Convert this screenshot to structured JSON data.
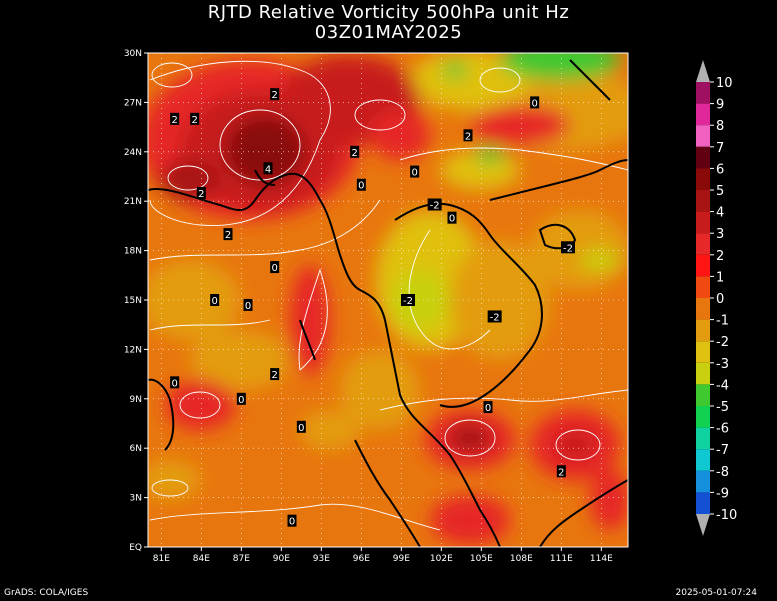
{
  "title": {
    "line1": "RJTD Relative Vorticity 500hPa unit Hz",
    "line2": "03Z01MAY2025"
  },
  "axes": {
    "lon_ticks": [
      "81E",
      "84E",
      "87E",
      "90E",
      "93E",
      "96E",
      "99E",
      "102E",
      "105E",
      "108E",
      "111E",
      "114E"
    ],
    "lat_ticks": [
      "EQ",
      "3N",
      "6N",
      "9N",
      "12N",
      "15N",
      "18N",
      "21N",
      "24N",
      "27N",
      "30N"
    ],
    "lon_range": [
      80,
      116
    ],
    "lat_range": [
      0,
      30
    ]
  },
  "colorbar": {
    "labels": [
      "10",
      "9",
      "8",
      "7",
      "6",
      "5",
      "4",
      "3",
      "2",
      "1",
      "0",
      "-1",
      "-2",
      "-3",
      "-4",
      "-5",
      "-6",
      "-7",
      "-8",
      "-9",
      "-10"
    ],
    "colors": [
      "#a01060",
      "#e0289a",
      "#f060c0",
      "#600010",
      "#8a0a0a",
      "#a81414",
      "#c81c1c",
      "#e62828",
      "#ff1414",
      "#f04a10",
      "#e8760e",
      "#e39c10",
      "#e0c010",
      "#c8d010",
      "#40c830",
      "#10d250",
      "#10d2a0",
      "#10c8d2",
      "#1490dc",
      "#1450d2",
      "#1428e6"
    ]
  },
  "contour_labels": [
    {
      "text": "2",
      "lon": 89.5,
      "lat": 27.5
    },
    {
      "text": "2",
      "lon": 82,
      "lat": 26.0
    },
    {
      "text": "2",
      "lon": 83.5,
      "lat": 26.0
    },
    {
      "text": "4",
      "lon": 89.0,
      "lat": 23.0
    },
    {
      "text": "2",
      "lon": 84.0,
      "lat": 21.5
    },
    {
      "text": "2",
      "lon": 86.0,
      "lat": 19.0
    },
    {
      "text": "2",
      "lon": 95.5,
      "lat": 24.0
    },
    {
      "text": "0",
      "lon": 96.0,
      "lat": 22.0
    },
    {
      "text": "0",
      "lon": 100.0,
      "lat": 22.8
    },
    {
      "text": "2",
      "lon": 104.0,
      "lat": 25.0
    },
    {
      "text": "0",
      "lon": 109.0,
      "lat": 27.0
    },
    {
      "text": "-2",
      "lon": 101.5,
      "lat": 20.8
    },
    {
      "text": "0",
      "lon": 102.8,
      "lat": 20.0
    },
    {
      "text": "-2",
      "lon": 111.5,
      "lat": 18.2
    },
    {
      "text": "0",
      "lon": 89.5,
      "lat": 17.0
    },
    {
      "text": "0",
      "lon": 85.0,
      "lat": 15.0
    },
    {
      "text": "0",
      "lon": 87.5,
      "lat": 14.7
    },
    {
      "text": "-2",
      "lon": 99.5,
      "lat": 15.0
    },
    {
      "text": "-2",
      "lon": 106.0,
      "lat": 14.0
    },
    {
      "text": "2",
      "lon": 89.5,
      "lat": 10.5
    },
    {
      "text": "0",
      "lon": 82.0,
      "lat": 10.0
    },
    {
      "text": "0",
      "lon": 87.0,
      "lat": 9.0
    },
    {
      "text": "0",
      "lon": 91.5,
      "lat": 7.3
    },
    {
      "text": "0",
      "lon": 105.5,
      "lat": 8.5
    },
    {
      "text": "2",
      "lon": 111.0,
      "lat": 4.6
    },
    {
      "text": "0",
      "lon": 90.8,
      "lat": 1.6
    }
  ],
  "footer": {
    "left": "GrADS: COLA/IGES",
    "right": "2025-05-01-07:24"
  }
}
